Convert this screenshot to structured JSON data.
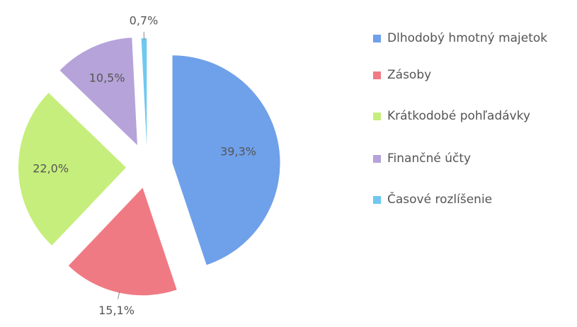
{
  "chart_data": {
    "type": "pie",
    "categories": [
      "Dlhodobý hmotný majetok",
      "Zásoby",
      "Krátkodobé pohľadávky",
      "Finančné účty",
      "Časové rozlíšenie"
    ],
    "values": [
      39.3,
      15.1,
      22.0,
      10.5,
      0.7
    ],
    "value_labels": [
      "39,3%",
      "15,1%",
      "22,0%",
      "10,5%",
      "0,7%"
    ],
    "colors": [
      "#6fa0ea",
      "#f07a84",
      "#c6ee7c",
      "#b5a3d9",
      "#6fc8ef"
    ],
    "legend": "right"
  }
}
